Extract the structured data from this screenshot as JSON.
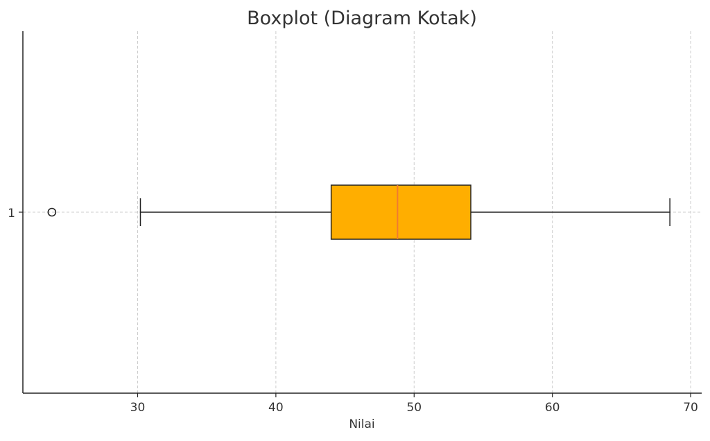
{
  "chart_data": {
    "type": "boxplot",
    "orientation": "horizontal",
    "title": "Boxplot (Diagram Kotak)",
    "xlabel": "Nilai",
    "ylabel": "",
    "xlim": [
      21.7,
      70.8
    ],
    "xticks": [
      30,
      40,
      50,
      60,
      70
    ],
    "categories": [
      "1"
    ],
    "grid": true,
    "colors": {
      "box_fill": "#FFAE00",
      "median": "#F07A30",
      "edge": "#222222",
      "grid": "#cccccc"
    },
    "boxes": [
      {
        "label": "1",
        "whisker_low": 30.2,
        "q1": 44.0,
        "median": 48.8,
        "q3": 54.1,
        "whisker_high": 68.5,
        "outliers": [
          23.8
        ]
      }
    ]
  }
}
